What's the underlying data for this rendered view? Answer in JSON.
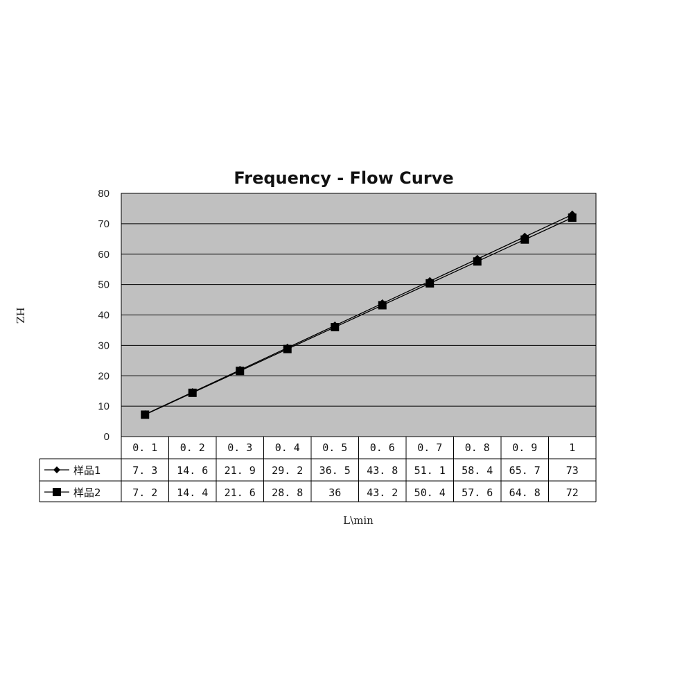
{
  "chart_data": {
    "type": "line",
    "title": "Frequency - Flow Curve",
    "xlabel": "L\\min",
    "ylabel": "HZ",
    "ylim": [
      0,
      80
    ],
    "yticks": [
      "0",
      "10",
      "20",
      "30",
      "40",
      "50",
      "60",
      "70",
      "80"
    ],
    "categories": [
      "0. 1",
      "0. 2",
      "0. 3",
      "0. 4",
      "0. 5",
      "0. 6",
      "0. 7",
      "0. 8",
      "0. 9",
      "1"
    ],
    "grid": true,
    "series": [
      {
        "name": "样品1",
        "marker": "diamond",
        "values": [
          7.3,
          14.6,
          21.9,
          29.2,
          36.5,
          43.8,
          51.1,
          58.4,
          65.7,
          73
        ],
        "labels": [
          "7. 3",
          "14. 6",
          "21. 9",
          "29. 2",
          "36. 5",
          "43. 8",
          "51. 1",
          "58. 4",
          "65. 7",
          "73"
        ]
      },
      {
        "name": "样品2",
        "marker": "square",
        "values": [
          7.2,
          14.4,
          21.6,
          28.8,
          36,
          43.2,
          50.4,
          57.6,
          64.8,
          72
        ],
        "labels": [
          "7. 2",
          "14. 4",
          "21. 6",
          "28. 8",
          "36",
          "43. 2",
          "50. 4",
          "57. 6",
          "64. 8",
          "72"
        ]
      }
    ],
    "colors": {
      "plot_bg": "#c0c0c0",
      "line": "#000000",
      "grid": "#000000"
    }
  }
}
